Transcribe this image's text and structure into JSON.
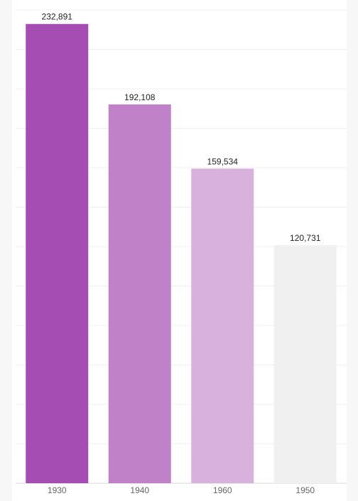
{
  "chart_data": {
    "type": "bar",
    "title": "",
    "xlabel": "",
    "ylabel": "",
    "categories": [
      "1930",
      "1940",
      "1960",
      "1950"
    ],
    "values": [
      232891,
      192108,
      159534,
      120731
    ],
    "value_labels": [
      "232,891",
      "192,108",
      "159,534",
      "120,731"
    ],
    "ylim": [
      0,
      240000
    ],
    "grid": true,
    "legend": "none",
    "colors": [
      "#a64db3",
      "#c181c9",
      "#d8b1dd",
      "#f0f0f0"
    ]
  }
}
